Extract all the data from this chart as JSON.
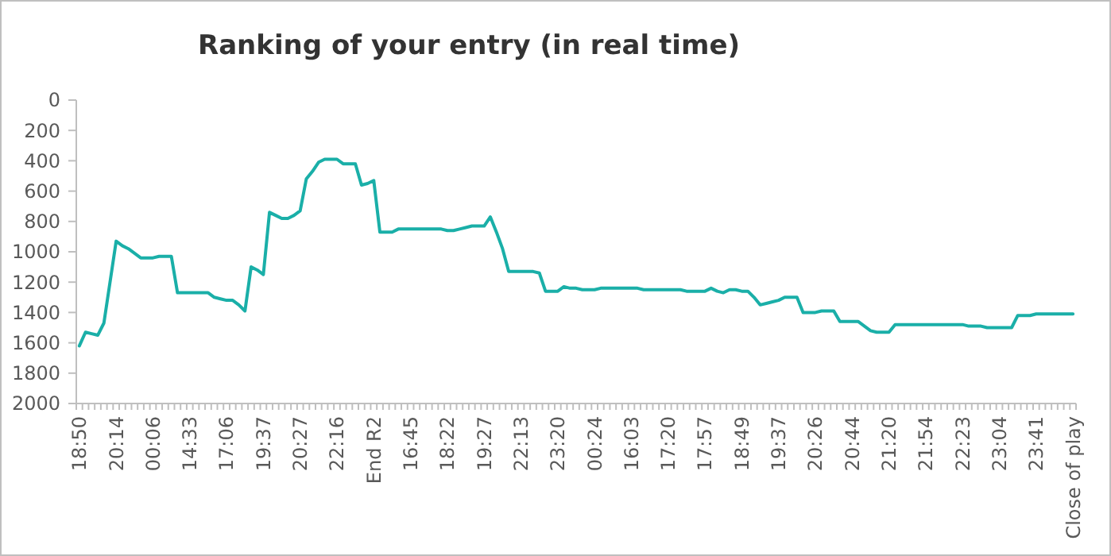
{
  "chart_data": {
    "type": "line",
    "title": "Ranking of your entry (in real time)",
    "categories": [
      "18:50",
      null,
      null,
      null,
      null,
      null,
      "20:14",
      null,
      null,
      null,
      null,
      null,
      "00:06",
      null,
      null,
      null,
      null,
      null,
      "14:33",
      null,
      null,
      null,
      null,
      null,
      "17:06",
      null,
      null,
      null,
      null,
      null,
      "19:37",
      null,
      null,
      null,
      null,
      null,
      "20:27",
      null,
      null,
      null,
      null,
      null,
      "22:16",
      null,
      null,
      null,
      null,
      null,
      "End R2",
      null,
      null,
      null,
      null,
      null,
      "16:45",
      null,
      null,
      null,
      null,
      null,
      "18:22",
      null,
      null,
      null,
      null,
      null,
      "19:27",
      null,
      null,
      null,
      null,
      null,
      "22:13",
      null,
      null,
      null,
      null,
      null,
      "23:20",
      null,
      null,
      null,
      null,
      null,
      "00:24",
      null,
      null,
      null,
      null,
      null,
      "16:03",
      null,
      null,
      null,
      null,
      null,
      "17:20",
      null,
      null,
      null,
      null,
      null,
      "17:57",
      null,
      null,
      null,
      null,
      null,
      "18:49",
      null,
      null,
      null,
      null,
      null,
      "19:37",
      null,
      null,
      null,
      null,
      null,
      "20:26",
      null,
      null,
      null,
      null,
      null,
      "20:44",
      null,
      null,
      null,
      null,
      null,
      "21:20",
      null,
      null,
      null,
      null,
      null,
      "21:54",
      null,
      null,
      null,
      null,
      null,
      "22:23",
      null,
      null,
      null,
      null,
      null,
      "23:04",
      null,
      null,
      null,
      null,
      null,
      "23:41",
      null,
      null,
      null,
      null,
      null,
      "Close of play"
    ],
    "series": [
      {
        "color": "#1aafa8",
        "values": [
          1620,
          1530,
          1540,
          1550,
          1470,
          1200,
          930,
          960,
          980,
          1010,
          1040,
          1040,
          1040,
          1030,
          1030,
          1030,
          1270,
          1270,
          1270,
          1270,
          1270,
          1270,
          1300,
          1310,
          1320,
          1320,
          1350,
          1390,
          1100,
          1120,
          1150,
          740,
          760,
          780,
          780,
          760,
          730,
          520,
          470,
          410,
          390,
          390,
          390,
          420,
          420,
          420,
          560,
          550,
          530,
          870,
          870,
          870,
          850,
          850,
          850,
          850,
          850,
          850,
          850,
          850,
          860,
          860,
          850,
          840,
          830,
          830,
          830,
          770,
          870,
          980,
          1130,
          1130,
          1130,
          1130,
          1130,
          1140,
          1260,
          1260,
          1260,
          1230,
          1240,
          1240,
          1250,
          1250,
          1250,
          1240,
          1240,
          1240,
          1240,
          1240,
          1240,
          1240,
          1250,
          1250,
          1250,
          1250,
          1250,
          1250,
          1250,
          1260,
          1260,
          1260,
          1260,
          1240,
          1260,
          1270,
          1250,
          1250,
          1260,
          1260,
          1300,
          1350,
          1340,
          1330,
          1320,
          1300,
          1300,
          1300,
          1400,
          1400,
          1400,
          1390,
          1390,
          1390,
          1460,
          1460,
          1460,
          1460,
          1490,
          1520,
          1530,
          1530,
          1530,
          1480,
          1480,
          1480,
          1480,
          1480,
          1480,
          1480,
          1480,
          1480,
          1480,
          1480,
          1480,
          1490,
          1490,
          1490,
          1500,
          1500,
          1500,
          1500,
          1500,
          1420,
          1420,
          1420,
          1410,
          1410,
          1410,
          1410,
          1410,
          1410,
          1410
        ]
      }
    ],
    "ylim": [
      2000,
      0
    ],
    "yticks": [
      0,
      200,
      400,
      600,
      800,
      1000,
      1200,
      1400,
      1600,
      1800,
      2000
    ],
    "grid": false,
    "marker": "none",
    "line_style": "solid"
  }
}
